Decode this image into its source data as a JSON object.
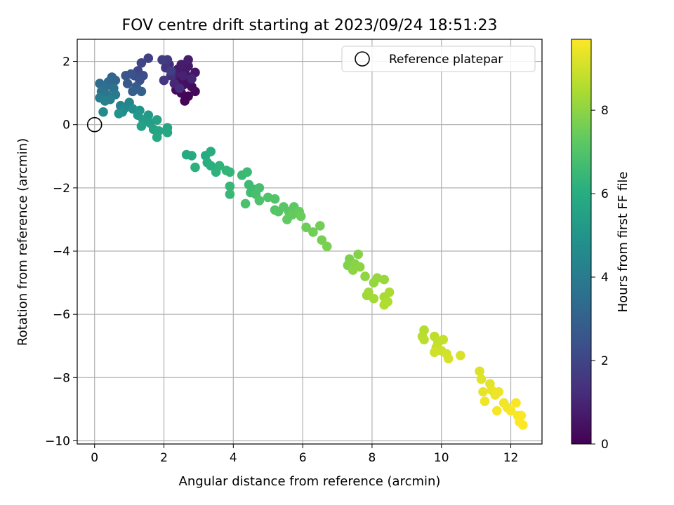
{
  "chart_data": {
    "type": "scatter",
    "title": "FOV centre drift starting at 2023/09/24 18:51:23",
    "xlabel": "Angular distance from reference (arcmin)",
    "ylabel": "Rotation from reference (arcmin)",
    "xlim": [
      -0.5,
      12.9
    ],
    "ylim": [
      -10.1,
      2.7
    ],
    "x_ticks": [
      0,
      2,
      4,
      6,
      8,
      10,
      12
    ],
    "x_tick_labels": [
      "0",
      "2",
      "4",
      "6",
      "8",
      "10",
      "12"
    ],
    "y_ticks": [
      2,
      0,
      -2,
      -4,
      -6,
      -8,
      -10
    ],
    "y_tick_labels": [
      "2",
      "0",
      "−2",
      "−4",
      "−6",
      "−8",
      "−10"
    ],
    "grid": true,
    "legend": {
      "placement": "top-right",
      "label": "Reference platepar"
    },
    "reference_point": {
      "x": 0,
      "y": 0
    },
    "colorbar": {
      "label": "Hours from first FF file",
      "colormap": "viridis",
      "range": [
        0,
        9.7
      ],
      "ticks": [
        0,
        2,
        4,
        6,
        8
      ],
      "tick_labels": [
        "0",
        "2",
        "4",
        "6",
        "8"
      ]
    },
    "points": [
      {
        "x": 2.6,
        "y": 0.75,
        "h": 0.05
      },
      {
        "x": 2.7,
        "y": 0.9,
        "h": 0.1
      },
      {
        "x": 2.5,
        "y": 1.0,
        "h": 0.15
      },
      {
        "x": 2.9,
        "y": 1.05,
        "h": 0.2
      },
      {
        "x": 2.35,
        "y": 1.1,
        "h": 0.25
      },
      {
        "x": 2.8,
        "y": 1.2,
        "h": 0.3
      },
      {
        "x": 2.55,
        "y": 1.25,
        "h": 0.35
      },
      {
        "x": 2.65,
        "y": 1.35,
        "h": 0.4
      },
      {
        "x": 2.45,
        "y": 1.4,
        "h": 0.45
      },
      {
        "x": 2.75,
        "y": 1.5,
        "h": 0.5
      },
      {
        "x": 2.9,
        "y": 1.65,
        "h": 0.55
      },
      {
        "x": 2.6,
        "y": 1.7,
        "h": 0.6
      },
      {
        "x": 2.4,
        "y": 1.75,
        "h": 0.65
      },
      {
        "x": 2.7,
        "y": 1.85,
        "h": 0.7
      },
      {
        "x": 2.5,
        "y": 1.9,
        "h": 0.75
      },
      {
        "x": 2.7,
        "y": 2.05,
        "h": 0.8
      },
      {
        "x": 2.3,
        "y": 1.6,
        "h": 0.85
      },
      {
        "x": 2.55,
        "y": 1.55,
        "h": 0.9
      },
      {
        "x": 2.8,
        "y": 1.45,
        "h": 1.0
      },
      {
        "x": 2.3,
        "y": 1.3,
        "h": 1.05
      },
      {
        "x": 2.15,
        "y": 1.9,
        "h": 1.1
      },
      {
        "x": 2.45,
        "y": 1.15,
        "h": 1.2
      },
      {
        "x": 2.2,
        "y": 1.55,
        "h": 1.3
      },
      {
        "x": 2.05,
        "y": 1.8,
        "h": 1.4
      },
      {
        "x": 2.0,
        "y": 1.4,
        "h": 1.5
      },
      {
        "x": 2.1,
        "y": 2.05,
        "h": 1.6
      },
      {
        "x": 1.95,
        "y": 2.05,
        "h": 1.7
      },
      {
        "x": 2.2,
        "y": 1.7,
        "h": 1.8
      },
      {
        "x": 1.55,
        "y": 2.1,
        "h": 1.9
      },
      {
        "x": 1.35,
        "y": 1.95,
        "h": 2.0
      },
      {
        "x": 1.25,
        "y": 1.7,
        "h": 2.1
      },
      {
        "x": 1.15,
        "y": 1.55,
        "h": 2.2
      },
      {
        "x": 1.4,
        "y": 1.55,
        "h": 2.3
      },
      {
        "x": 1.3,
        "y": 1.4,
        "h": 2.4
      },
      {
        "x": 1.05,
        "y": 1.6,
        "h": 2.5
      },
      {
        "x": 0.9,
        "y": 1.55,
        "h": 2.6
      },
      {
        "x": 0.95,
        "y": 1.3,
        "h": 2.7
      },
      {
        "x": 1.2,
        "y": 1.2,
        "h": 2.8
      },
      {
        "x": 1.1,
        "y": 1.05,
        "h": 2.9
      },
      {
        "x": 1.35,
        "y": 1.05,
        "h": 3.0
      },
      {
        "x": 0.5,
        "y": 1.5,
        "h": 3.1
      },
      {
        "x": 0.6,
        "y": 1.4,
        "h": 3.2
      },
      {
        "x": 0.4,
        "y": 1.35,
        "h": 3.3
      },
      {
        "x": 0.15,
        "y": 1.3,
        "h": 3.4
      },
      {
        "x": 0.3,
        "y": 1.2,
        "h": 3.5
      },
      {
        "x": 0.55,
        "y": 1.15,
        "h": 3.6
      },
      {
        "x": 0.2,
        "y": 1.05,
        "h": 3.7
      },
      {
        "x": 0.35,
        "y": 0.95,
        "h": 3.8
      },
      {
        "x": 0.6,
        "y": 0.95,
        "h": 3.9
      },
      {
        "x": 0.15,
        "y": 0.85,
        "h": 4.0
      },
      {
        "x": 0.45,
        "y": 0.8,
        "h": 4.1
      },
      {
        "x": 0.3,
        "y": 0.75,
        "h": 4.2
      },
      {
        "x": 0.75,
        "y": 0.6,
        "h": 4.3
      },
      {
        "x": 1.0,
        "y": 0.7,
        "h": 4.4
      },
      {
        "x": 0.85,
        "y": 0.5,
        "h": 4.5
      },
      {
        "x": 0.25,
        "y": 0.4,
        "h": 4.6
      },
      {
        "x": 0.8,
        "y": 0.4,
        "h": 4.7
      },
      {
        "x": 1.1,
        "y": 0.5,
        "h": 4.8
      },
      {
        "x": 0.7,
        "y": 0.35,
        "h": 4.9
      },
      {
        "x": 1.3,
        "y": 0.45,
        "h": 5.0
      },
      {
        "x": 1.25,
        "y": 0.3,
        "h": 5.1
      },
      {
        "x": 1.55,
        "y": 0.3,
        "h": 5.2
      },
      {
        "x": 1.4,
        "y": 0.15,
        "h": 5.3
      },
      {
        "x": 1.6,
        "y": 0.05,
        "h": 5.4
      },
      {
        "x": 1.8,
        "y": 0.15,
        "h": 5.5
      },
      {
        "x": 1.35,
        "y": -0.05,
        "h": 5.55
      },
      {
        "x": 1.7,
        "y": -0.15,
        "h": 5.6
      },
      {
        "x": 1.85,
        "y": -0.2,
        "h": 5.65
      },
      {
        "x": 2.1,
        "y": -0.1,
        "h": 5.7
      },
      {
        "x": 2.1,
        "y": -0.25,
        "h": 5.75
      },
      {
        "x": 1.8,
        "y": -0.4,
        "h": 5.8
      },
      {
        "x": 2.65,
        "y": -0.95,
        "h": 5.85
      },
      {
        "x": 2.8,
        "y": -0.98,
        "h": 5.9
      },
      {
        "x": 3.2,
        "y": -0.98,
        "h": 5.95
      },
      {
        "x": 3.35,
        "y": -0.85,
        "h": 6.0
      },
      {
        "x": 3.25,
        "y": -1.2,
        "h": 6.05
      },
      {
        "x": 3.35,
        "y": -1.3,
        "h": 6.1
      },
      {
        "x": 2.9,
        "y": -1.35,
        "h": 6.15
      },
      {
        "x": 3.5,
        "y": -1.5,
        "h": 6.2
      },
      {
        "x": 3.6,
        "y": -1.3,
        "h": 6.25
      },
      {
        "x": 3.8,
        "y": -1.45,
        "h": 6.3
      },
      {
        "x": 3.9,
        "y": -1.5,
        "h": 6.35
      },
      {
        "x": 3.9,
        "y": -1.95,
        "h": 6.4
      },
      {
        "x": 3.9,
        "y": -2.2,
        "h": 6.45
      },
      {
        "x": 4.25,
        "y": -1.6,
        "h": 6.5
      },
      {
        "x": 4.4,
        "y": -1.5,
        "h": 6.55
      },
      {
        "x": 4.45,
        "y": -1.9,
        "h": 6.6
      },
      {
        "x": 4.6,
        "y": -2.05,
        "h": 6.65
      },
      {
        "x": 4.5,
        "y": -2.15,
        "h": 6.7
      },
      {
        "x": 4.75,
        "y": -2.0,
        "h": 6.75
      },
      {
        "x": 4.65,
        "y": -2.2,
        "h": 6.8
      },
      {
        "x": 4.35,
        "y": -2.5,
        "h": 6.85
      },
      {
        "x": 4.75,
        "y": -2.4,
        "h": 6.9
      },
      {
        "x": 5.0,
        "y": -2.3,
        "h": 6.95
      },
      {
        "x": 5.2,
        "y": -2.35,
        "h": 7.0
      },
      {
        "x": 5.2,
        "y": -2.7,
        "h": 7.05
      },
      {
        "x": 5.3,
        "y": -2.75,
        "h": 7.1
      },
      {
        "x": 5.45,
        "y": -2.6,
        "h": 7.15
      },
      {
        "x": 5.6,
        "y": -2.75,
        "h": 7.2
      },
      {
        "x": 5.75,
        "y": -2.6,
        "h": 7.25
      },
      {
        "x": 5.55,
        "y": -3.0,
        "h": 7.3
      },
      {
        "x": 5.7,
        "y": -2.85,
        "h": 7.35
      },
      {
        "x": 5.9,
        "y": -2.75,
        "h": 7.4
      },
      {
        "x": 5.95,
        "y": -2.9,
        "h": 7.45
      },
      {
        "x": 6.1,
        "y": -3.25,
        "h": 7.5
      },
      {
        "x": 6.3,
        "y": -3.4,
        "h": 7.55
      },
      {
        "x": 6.5,
        "y": -3.2,
        "h": 7.6
      },
      {
        "x": 6.55,
        "y": -3.65,
        "h": 7.65
      },
      {
        "x": 6.7,
        "y": -3.85,
        "h": 7.7
      },
      {
        "x": 7.35,
        "y": -4.25,
        "h": 7.75
      },
      {
        "x": 7.3,
        "y": -4.45,
        "h": 7.8
      },
      {
        "x": 7.6,
        "y": -4.1,
        "h": 7.85
      },
      {
        "x": 7.5,
        "y": -4.4,
        "h": 7.9
      },
      {
        "x": 7.45,
        "y": -4.6,
        "h": 7.95
      },
      {
        "x": 7.65,
        "y": -4.5,
        "h": 8.0
      },
      {
        "x": 7.8,
        "y": -4.8,
        "h": 8.05
      },
      {
        "x": 8.05,
        "y": -5.0,
        "h": 8.1
      },
      {
        "x": 8.15,
        "y": -4.85,
        "h": 8.15
      },
      {
        "x": 8.35,
        "y": -4.9,
        "h": 8.2
      },
      {
        "x": 7.85,
        "y": -5.4,
        "h": 8.25
      },
      {
        "x": 7.9,
        "y": -5.3,
        "h": 8.3
      },
      {
        "x": 8.05,
        "y": -5.5,
        "h": 8.35
      },
      {
        "x": 8.35,
        "y": -5.45,
        "h": 8.4
      },
      {
        "x": 8.5,
        "y": -5.3,
        "h": 8.45
      },
      {
        "x": 8.45,
        "y": -5.6,
        "h": 8.5
      },
      {
        "x": 8.35,
        "y": -5.7,
        "h": 8.55
      },
      {
        "x": 9.5,
        "y": -6.5,
        "h": 8.6
      },
      {
        "x": 9.45,
        "y": -6.7,
        "h": 8.65
      },
      {
        "x": 9.5,
        "y": -6.8,
        "h": 8.7
      },
      {
        "x": 9.8,
        "y": -6.7,
        "h": 8.75
      },
      {
        "x": 9.9,
        "y": -6.9,
        "h": 8.8
      },
      {
        "x": 10.05,
        "y": -6.8,
        "h": 8.85
      },
      {
        "x": 9.85,
        "y": -7.05,
        "h": 8.9
      },
      {
        "x": 10.0,
        "y": -7.15,
        "h": 8.95
      },
      {
        "x": 9.8,
        "y": -7.2,
        "h": 9.0
      },
      {
        "x": 10.15,
        "y": -7.25,
        "h": 9.05
      },
      {
        "x": 10.2,
        "y": -7.4,
        "h": 9.1
      },
      {
        "x": 10.55,
        "y": -7.3,
        "h": 9.15
      },
      {
        "x": 11.1,
        "y": -7.8,
        "h": 9.2
      },
      {
        "x": 11.15,
        "y": -8.05,
        "h": 9.25
      },
      {
        "x": 11.4,
        "y": -8.2,
        "h": 9.3
      },
      {
        "x": 11.2,
        "y": -8.45,
        "h": 9.35
      },
      {
        "x": 11.45,
        "y": -8.4,
        "h": 9.4
      },
      {
        "x": 11.55,
        "y": -8.55,
        "h": 9.45
      },
      {
        "x": 11.65,
        "y": -8.45,
        "h": 9.48
      },
      {
        "x": 11.25,
        "y": -8.75,
        "h": 9.5
      },
      {
        "x": 11.8,
        "y": -8.8,
        "h": 9.52
      },
      {
        "x": 11.9,
        "y": -8.95,
        "h": 9.55
      },
      {
        "x": 12.0,
        "y": -9.05,
        "h": 9.58
      },
      {
        "x": 11.6,
        "y": -9.05,
        "h": 9.6
      },
      {
        "x": 12.15,
        "y": -8.8,
        "h": 9.62
      },
      {
        "x": 12.2,
        "y": -9.2,
        "h": 9.64
      },
      {
        "x": 12.3,
        "y": -9.2,
        "h": 9.66
      },
      {
        "x": 12.25,
        "y": -9.4,
        "h": 9.68
      },
      {
        "x": 12.35,
        "y": -9.5,
        "h": 9.7
      }
    ]
  }
}
